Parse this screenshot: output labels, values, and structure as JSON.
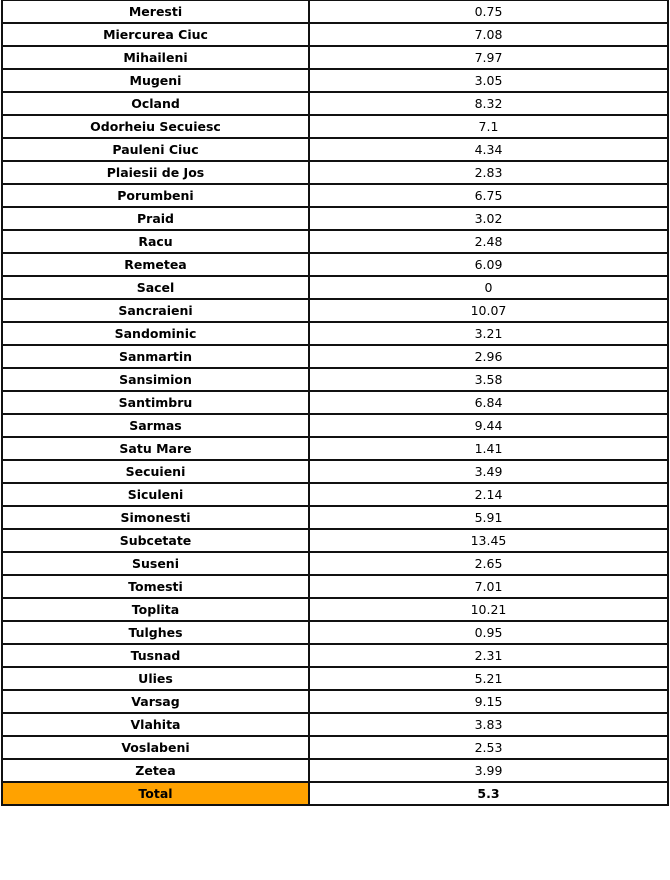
{
  "rows": [
    {
      "name": "Meresti",
      "value": "0.75"
    },
    {
      "name": "Miercurea Ciuc",
      "value": "7.08"
    },
    {
      "name": "Mihaileni",
      "value": "7.97"
    },
    {
      "name": "Mugeni",
      "value": "3.05"
    },
    {
      "name": "Ocland",
      "value": "8.32"
    },
    {
      "name": "Odorheiu Secuiesc",
      "value": "7.1"
    },
    {
      "name": "Pauleni Ciuc",
      "value": "4.34"
    },
    {
      "name": "Plaiesii de Jos",
      "value": "2.83"
    },
    {
      "name": "Porumbeni",
      "value": "6.75"
    },
    {
      "name": "Praid",
      "value": "3.02"
    },
    {
      "name": "Racu",
      "value": "2.48"
    },
    {
      "name": "Remetea",
      "value": "6.09"
    },
    {
      "name": "Sacel",
      "value": "0"
    },
    {
      "name": "Sancraieni",
      "value": "10.07"
    },
    {
      "name": "Sandominic",
      "value": "3.21"
    },
    {
      "name": "Sanmartin",
      "value": "2.96"
    },
    {
      "name": "Sansimion",
      "value": "3.58"
    },
    {
      "name": "Santimbru",
      "value": "6.84"
    },
    {
      "name": "Sarmas",
      "value": "9.44"
    },
    {
      "name": "Satu Mare",
      "value": "1.41"
    },
    {
      "name": "Secuieni",
      "value": "3.49"
    },
    {
      "name": "Siculeni",
      "value": "2.14"
    },
    {
      "name": "Simonesti",
      "value": "5.91"
    },
    {
      "name": "Subcetate",
      "value": "13.45"
    },
    {
      "name": "Suseni",
      "value": "2.65"
    },
    {
      "name": "Tomesti",
      "value": "7.01"
    },
    {
      "name": "Toplita",
      "value": "10.21"
    },
    {
      "name": "Tulghes",
      "value": "0.95"
    },
    {
      "name": "Tusnad",
      "value": "2.31"
    },
    {
      "name": "Ulies",
      "value": "5.21"
    },
    {
      "name": "Varsag",
      "value": "9.15"
    },
    {
      "name": "Vlahita",
      "value": "3.83"
    },
    {
      "name": "Voslabeni",
      "value": "2.53"
    },
    {
      "name": "Zetea",
      "value": "3.99"
    }
  ],
  "total": {
    "name": "Total",
    "value": "5.3",
    "highlight_color": "#ffa200"
  }
}
